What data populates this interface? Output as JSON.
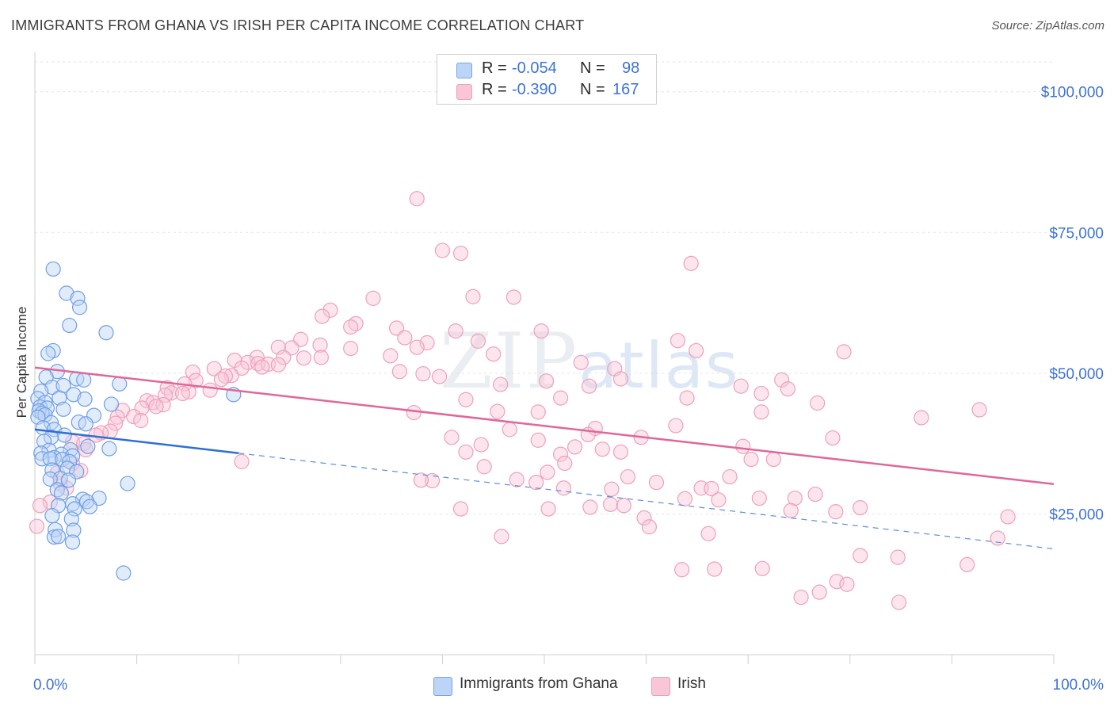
{
  "title": "IMMIGRANTS FROM GHANA VS IRISH PER CAPITA INCOME CORRELATION CHART",
  "source": "Source: ZipAtlas.com",
  "watermark": {
    "zip": "ZIP",
    "atlas": "atlas"
  },
  "legend": {
    "rows": [
      {
        "r_label": "R = ",
        "r_value": "-0.054",
        "n_label": "N = ",
        "n_value": "98",
        "color": "#5b8fdb",
        "fill": "#bcd4f6"
      },
      {
        "r_label": "R = ",
        "r_value": "-0.390",
        "n_label": "N = ",
        "n_value": "167",
        "color": "#e882a4",
        "fill": "#f8c6d6"
      }
    ]
  },
  "bottom_legend": [
    {
      "label": "Immigrants from Ghana",
      "fill": "#bcd4f6",
      "stroke": "#7aa4e6"
    },
    {
      "label": "Irish",
      "fill": "#f8c6d6",
      "stroke": "#eba0bb"
    }
  ],
  "chart_data": {
    "type": "scatter",
    "title": "IMMIGRANTS FROM GHANA VS IRISH PER CAPITA INCOME CORRELATION CHART",
    "xlabel": "",
    "ylabel": "Per Capita Income",
    "xlim": [
      0,
      100
    ],
    "ylim": [
      0,
      107000
    ],
    "x_tick_labels": [
      "0.0%",
      "100.0%"
    ],
    "y_ticks": [
      25000,
      50000,
      75000,
      100000
    ],
    "y_tick_labels": [
      "$25,000",
      "$50,000",
      "$75,000",
      "$100,000"
    ],
    "series": [
      {
        "name": "Immigrants from Ghana",
        "color": "#5b8fdb",
        "fill": "#bcd4f6",
        "trend": {
          "x": [
            0,
            20
          ],
          "y": [
            40000,
            35800
          ],
          "dashed_to": [
            100,
            18800
          ]
        },
        "points": [
          [
            1.8,
            68500
          ],
          [
            3.1,
            64200
          ],
          [
            4.2,
            63300
          ],
          [
            4.4,
            61700
          ],
          [
            3.4,
            58500
          ],
          [
            7.0,
            57200
          ],
          [
            1.8,
            54000
          ],
          [
            1.3,
            53500
          ],
          [
            2.2,
            50300
          ],
          [
            1.1,
            49300
          ],
          [
            4.1,
            49000
          ],
          [
            4.8,
            48800
          ],
          [
            8.3,
            48100
          ],
          [
            1.7,
            47500
          ],
          [
            2.8,
            47800
          ],
          [
            0.6,
            46800
          ],
          [
            3.8,
            46200
          ],
          [
            2.4,
            45600
          ],
          [
            4.9,
            45400
          ],
          [
            0.3,
            45500
          ],
          [
            1.0,
            44800
          ],
          [
            7.5,
            44500
          ],
          [
            0.5,
            44000
          ],
          [
            1.2,
            43800
          ],
          [
            2.8,
            43600
          ],
          [
            0.4,
            43300
          ],
          [
            0.7,
            42900
          ],
          [
            1.0,
            42600
          ],
          [
            5.8,
            42500
          ],
          [
            0.3,
            42200
          ],
          [
            19.5,
            46200
          ],
          [
            4.3,
            41300
          ],
          [
            1.6,
            41200
          ],
          [
            5.0,
            41000
          ],
          [
            0.8,
            40300
          ],
          [
            1.9,
            40000
          ],
          [
            2.9,
            39000
          ],
          [
            1.6,
            38600
          ],
          [
            0.9,
            37900
          ],
          [
            5.2,
            37000
          ],
          [
            7.3,
            36600
          ],
          [
            3.5,
            36400
          ],
          [
            1.4,
            36300
          ],
          [
            0.6,
            35800
          ],
          [
            2.6,
            35600
          ],
          [
            3.7,
            35300
          ],
          [
            1.9,
            35000
          ],
          [
            0.7,
            34800
          ],
          [
            1.5,
            34800
          ],
          [
            2.7,
            34700
          ],
          [
            3.4,
            34300
          ],
          [
            3.2,
            33100
          ],
          [
            1.7,
            32800
          ],
          [
            4.1,
            32500
          ],
          [
            2.5,
            31300
          ],
          [
            1.5,
            31200
          ],
          [
            3.3,
            31000
          ],
          [
            9.1,
            30400
          ],
          [
            2.2,
            29300
          ],
          [
            2.6,
            28700
          ],
          [
            6.3,
            27800
          ],
          [
            4.7,
            27600
          ],
          [
            5.1,
            27200
          ],
          [
            3.7,
            26800
          ],
          [
            2.3,
            26500
          ],
          [
            5.4,
            26300
          ],
          [
            3.9,
            25900
          ],
          [
            1.7,
            24700
          ],
          [
            3.6,
            24100
          ],
          [
            2.0,
            22200
          ],
          [
            3.8,
            22100
          ],
          [
            1.9,
            20900
          ],
          [
            2.3,
            21000
          ],
          [
            3.7,
            20000
          ],
          [
            8.7,
            14500
          ]
        ]
      },
      {
        "name": "Irish",
        "color": "#e882a4",
        "fill": "#f8c6d6",
        "trend": {
          "x": [
            0,
            100
          ],
          "y": [
            51000,
            30300
          ]
        },
        "points": [
          [
            37.5,
            81000
          ],
          [
            40.0,
            71800
          ],
          [
            41.8,
            71300
          ],
          [
            64.4,
            69500
          ],
          [
            43.0,
            63600
          ],
          [
            47.0,
            63500
          ],
          [
            33.2,
            63300
          ],
          [
            29.0,
            61200
          ],
          [
            28.2,
            60100
          ],
          [
            31.5,
            58800
          ],
          [
            35.5,
            58000
          ],
          [
            31.0,
            58200
          ],
          [
            49.7,
            57500
          ],
          [
            41.3,
            57500
          ],
          [
            36.3,
            56300
          ],
          [
            26.1,
            56000
          ],
          [
            63.1,
            55800
          ],
          [
            43.5,
            55700
          ],
          [
            38.5,
            55400
          ],
          [
            28.0,
            55000
          ],
          [
            25.2,
            54500
          ],
          [
            31.0,
            54400
          ],
          [
            23.9,
            54600
          ],
          [
            37.5,
            54600
          ],
          [
            79.4,
            53800
          ],
          [
            64.9,
            54000
          ],
          [
            45.0,
            53400
          ],
          [
            34.9,
            53100
          ],
          [
            21.8,
            52800
          ],
          [
            28.1,
            52800
          ],
          [
            24.4,
            52800
          ],
          [
            26.4,
            52700
          ],
          [
            19.6,
            52300
          ],
          [
            20.9,
            51900
          ],
          [
            53.6,
            51900
          ],
          [
            21.9,
            51700
          ],
          [
            22.9,
            51600
          ],
          [
            23.9,
            51500
          ],
          [
            22.3,
            51100
          ],
          [
            20.3,
            50900
          ],
          [
            56.9,
            50800
          ],
          [
            17.6,
            50800
          ],
          [
            35.8,
            50300
          ],
          [
            15.5,
            50200
          ],
          [
            38.1,
            49900
          ],
          [
            19.3,
            49600
          ],
          [
            18.7,
            49500
          ],
          [
            39.7,
            49400
          ],
          [
            57.5,
            49000
          ],
          [
            18.3,
            48900
          ],
          [
            73.3,
            48800
          ],
          [
            15.8,
            48700
          ],
          [
            50.2,
            48600
          ],
          [
            14.7,
            48100
          ],
          [
            45.7,
            48000
          ],
          [
            54.4,
            47700
          ],
          [
            69.3,
            47700
          ],
          [
            13.0,
            47400
          ],
          [
            73.9,
            47200
          ],
          [
            17.2,
            47000
          ],
          [
            15.1,
            46700
          ],
          [
            13.4,
            46500
          ],
          [
            14.5,
            46400
          ],
          [
            71.3,
            46400
          ],
          [
            12.8,
            46100
          ],
          [
            51.6,
            45600
          ],
          [
            64.0,
            45600
          ],
          [
            11.0,
            45100
          ],
          [
            42.3,
            45300
          ],
          [
            11.6,
            44800
          ],
          [
            76.8,
            44700
          ],
          [
            12.6,
            44400
          ],
          [
            11.9,
            44100
          ],
          [
            92.7,
            43500
          ],
          [
            10.5,
            43800
          ],
          [
            8.6,
            43400
          ],
          [
            37.2,
            43000
          ],
          [
            45.4,
            43200
          ],
          [
            49.4,
            43100
          ],
          [
            71.3,
            43100
          ],
          [
            9.7,
            42300
          ],
          [
            8.1,
            42200
          ],
          [
            87.0,
            42100
          ],
          [
            10.4,
            41600
          ],
          [
            7.9,
            41100
          ],
          [
            62.9,
            40700
          ],
          [
            55.0,
            40200
          ],
          [
            46.6,
            40000
          ],
          [
            7.4,
            39700
          ],
          [
            6.5,
            39400
          ],
          [
            6.0,
            39000
          ],
          [
            54.3,
            39100
          ],
          [
            59.5,
            38600
          ],
          [
            40.9,
            38600
          ],
          [
            78.3,
            38500
          ],
          [
            49.4,
            38100
          ],
          [
            3.7,
            37800
          ],
          [
            4.8,
            37500
          ],
          [
            43.8,
            37300
          ],
          [
            53.0,
            36900
          ],
          [
            69.5,
            37000
          ],
          [
            55.7,
            36500
          ],
          [
            5.0,
            36400
          ],
          [
            57.5,
            36000
          ],
          [
            51.6,
            35600
          ],
          [
            42.3,
            36000
          ],
          [
            70.3,
            34700
          ],
          [
            72.5,
            34700
          ],
          [
            3.7,
            34000
          ],
          [
            20.3,
            34300
          ],
          [
            52.0,
            34000
          ],
          [
            44.1,
            33400
          ],
          [
            4.5,
            32700
          ],
          [
            50.3,
            32400
          ],
          [
            2.2,
            32300
          ],
          [
            58.2,
            31600
          ],
          [
            68.2,
            31600
          ],
          [
            47.3,
            31100
          ],
          [
            39.0,
            30900
          ],
          [
            49.2,
            30600
          ],
          [
            61.0,
            30600
          ],
          [
            2.5,
            30400
          ],
          [
            3.1,
            29600
          ],
          [
            51.9,
            29600
          ],
          [
            56.6,
            29400
          ],
          [
            65.4,
            29600
          ],
          [
            66.4,
            29500
          ],
          [
            76.6,
            28500
          ],
          [
            71.1,
            27800
          ],
          [
            74.6,
            27800
          ],
          [
            63.8,
            27700
          ],
          [
            67.1,
            27500
          ],
          [
            1.5,
            27100
          ],
          [
            56.5,
            26700
          ],
          [
            57.8,
            26500
          ],
          [
            54.5,
            26200
          ],
          [
            59.8,
            24300
          ],
          [
            60.3,
            22700
          ],
          [
            66.1,
            21500
          ],
          [
            0.5,
            26500
          ],
          [
            74.2,
            25600
          ],
          [
            78.6,
            25400
          ],
          [
            81.0,
            26100
          ],
          [
            41.8,
            25900
          ],
          [
            50.4,
            25900
          ],
          [
            37.9,
            31000
          ],
          [
            45.8,
            21000
          ],
          [
            0.2,
            22800
          ],
          [
            95.5,
            24500
          ],
          [
            94.5,
            20700
          ],
          [
            84.7,
            17300
          ],
          [
            81.0,
            17600
          ],
          [
            71.4,
            15300
          ],
          [
            63.5,
            15100
          ],
          [
            66.7,
            15200
          ],
          [
            91.5,
            16000
          ],
          [
            78.7,
            13000
          ],
          [
            79.7,
            12500
          ],
          [
            77.0,
            11100
          ],
          [
            75.2,
            10200
          ],
          [
            84.8,
            9300
          ]
        ]
      }
    ]
  }
}
